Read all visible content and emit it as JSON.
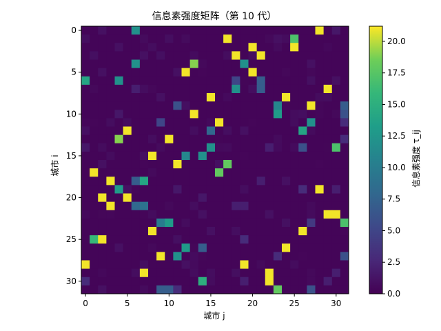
{
  "chart_data": {
    "type": "heatmap",
    "title": "信息素强度矩阵（第 10 代）",
    "xlabel": "城市 j",
    "ylabel": "城市 i",
    "colorbar_label": "信息素强度 τ_ij",
    "colormap": "viridis",
    "vmin": 0.0,
    "vmax": 21.2,
    "x_range": [
      0,
      31
    ],
    "y_range": [
      0,
      31
    ],
    "x_ticks": [
      0,
      5,
      10,
      15,
      20,
      25,
      30
    ],
    "y_ticks": [
      0,
      5,
      10,
      15,
      20,
      25,
      30
    ],
    "colorbar_ticks": [
      "0.0",
      "2.5",
      "5.0",
      "7.5",
      "10.0",
      "12.5",
      "15.0",
      "17.5",
      "20.0"
    ],
    "background_value": 0.3,
    "cells": [
      {
        "i": 0,
        "j": 6,
        "v": 12.0
      },
      {
        "i": 0,
        "j": 28,
        "v": 21.0
      },
      {
        "i": 0,
        "j": 30,
        "v": 1.5
      },
      {
        "i": 1,
        "j": 17,
        "v": 21.0
      },
      {
        "i": 1,
        "j": 25,
        "v": 17.0
      },
      {
        "i": 2,
        "j": 20,
        "v": 21.0
      },
      {
        "i": 2,
        "j": 25,
        "v": 21.0
      },
      {
        "i": 3,
        "j": 18,
        "v": 21.0
      },
      {
        "i": 3,
        "j": 21,
        "v": 21.0
      },
      {
        "i": 4,
        "j": 6,
        "v": 12.0
      },
      {
        "i": 4,
        "j": 13,
        "v": 19.0
      },
      {
        "i": 4,
        "j": 19,
        "v": 12.0
      },
      {
        "i": 5,
        "j": 12,
        "v": 21.0
      },
      {
        "i": 5,
        "j": 20,
        "v": 21.0
      },
      {
        "i": 6,
        "j": 0,
        "v": 14.0
      },
      {
        "i": 6,
        "j": 4,
        "v": 12.0
      },
      {
        "i": 6,
        "j": 18,
        "v": 5.0
      },
      {
        "i": 6,
        "j": 21,
        "v": 7.0
      },
      {
        "i": 7,
        "j": 6,
        "v": 2.0
      },
      {
        "i": 7,
        "j": 18,
        "v": 12.0
      },
      {
        "i": 7,
        "j": 21,
        "v": 7.0
      },
      {
        "i": 7,
        "j": 29,
        "v": 21.0
      },
      {
        "i": 8,
        "j": 15,
        "v": 21.0
      },
      {
        "i": 8,
        "j": 24,
        "v": 21.0
      },
      {
        "i": 9,
        "j": 11,
        "v": 6.0
      },
      {
        "i": 9,
        "j": 23,
        "v": 11.0
      },
      {
        "i": 9,
        "j": 27,
        "v": 21.0
      },
      {
        "i": 9,
        "j": 31,
        "v": 7.0
      },
      {
        "i": 10,
        "j": 13,
        "v": 21.0
      },
      {
        "i": 10,
        "j": 23,
        "v": 13.0
      },
      {
        "i": 10,
        "j": 31,
        "v": 6.0
      },
      {
        "i": 11,
        "j": 9,
        "v": 5.0
      },
      {
        "i": 11,
        "j": 16,
        "v": 21.0
      },
      {
        "i": 11,
        "j": 27,
        "v": 12.0
      },
      {
        "i": 11,
        "j": 31,
        "v": 3.0
      },
      {
        "i": 12,
        "j": 5,
        "v": 21.0
      },
      {
        "i": 12,
        "j": 15,
        "v": 8.0
      },
      {
        "i": 12,
        "j": 26,
        "v": 14.0
      },
      {
        "i": 13,
        "j": 4,
        "v": 19.0
      },
      {
        "i": 13,
        "j": 10,
        "v": 21.0
      },
      {
        "i": 13,
        "j": 31,
        "v": 3.0
      },
      {
        "i": 14,
        "j": 15,
        "v": 12.0
      },
      {
        "i": 14,
        "j": 26,
        "v": 6.0
      },
      {
        "i": 14,
        "j": 30,
        "v": 17.0
      },
      {
        "i": 14,
        "j": 22,
        "v": 2.0
      },
      {
        "i": 15,
        "j": 8,
        "v": 21.0
      },
      {
        "i": 15,
        "j": 12,
        "v": 11.0
      },
      {
        "i": 15,
        "j": 14,
        "v": 12.0
      },
      {
        "i": 16,
        "j": 11,
        "v": 21.0
      },
      {
        "i": 16,
        "j": 17,
        "v": 18.0
      },
      {
        "i": 17,
        "j": 1,
        "v": 21.0
      },
      {
        "i": 17,
        "j": 16,
        "v": 18.0
      },
      {
        "i": 18,
        "j": 3,
        "v": 21.0
      },
      {
        "i": 18,
        "j": 6,
        "v": 7.0
      },
      {
        "i": 18,
        "j": 7,
        "v": 14.0
      },
      {
        "i": 18,
        "j": 21,
        "v": 2.0
      },
      {
        "i": 19,
        "j": 4,
        "v": 13.0
      },
      {
        "i": 19,
        "j": 26,
        "v": 3.0
      },
      {
        "i": 19,
        "j": 28,
        "v": 21.0
      },
      {
        "i": 19,
        "j": 30,
        "v": 2.0
      },
      {
        "i": 20,
        "j": 2,
        "v": 21.0
      },
      {
        "i": 20,
        "j": 5,
        "v": 21.0
      },
      {
        "i": 21,
        "j": 3,
        "v": 21.0
      },
      {
        "i": 21,
        "j": 6,
        "v": 8.0
      },
      {
        "i": 21,
        "j": 7,
        "v": 9.0
      },
      {
        "i": 21,
        "j": 18,
        "v": 2.0
      },
      {
        "i": 21,
        "j": 19,
        "v": 2.0
      },
      {
        "i": 22,
        "j": 29,
        "v": 21.0
      },
      {
        "i": 22,
        "j": 30,
        "v": 21.0
      },
      {
        "i": 23,
        "j": 9,
        "v": 10.0
      },
      {
        "i": 23,
        "j": 10,
        "v": 13.0
      },
      {
        "i": 23,
        "j": 27,
        "v": 4.0
      },
      {
        "i": 23,
        "j": 31,
        "v": 17.0
      },
      {
        "i": 24,
        "j": 8,
        "v": 21.0
      },
      {
        "i": 24,
        "j": 26,
        "v": 21.0
      },
      {
        "i": 25,
        "j": 1,
        "v": 16.0
      },
      {
        "i": 25,
        "j": 2,
        "v": 21.0
      },
      {
        "i": 25,
        "j": 19,
        "v": 3.0
      },
      {
        "i": 26,
        "j": 12,
        "v": 13.0
      },
      {
        "i": 26,
        "j": 14,
        "v": 7.0
      },
      {
        "i": 26,
        "j": 24,
        "v": 21.0
      },
      {
        "i": 27,
        "j": 9,
        "v": 21.0
      },
      {
        "i": 27,
        "j": 11,
        "v": 12.0
      },
      {
        "i": 27,
        "j": 23,
        "v": 3.0
      },
      {
        "i": 27,
        "j": 31,
        "v": 6.0
      },
      {
        "i": 28,
        "j": 0,
        "v": 21.0
      },
      {
        "i": 28,
        "j": 19,
        "v": 21.0
      },
      {
        "i": 29,
        "j": 7,
        "v": 21.0
      },
      {
        "i": 29,
        "j": 22,
        "v": 21.0
      },
      {
        "i": 29,
        "j": 30,
        "v": 2.0
      },
      {
        "i": 30,
        "j": 0,
        "v": 3.0
      },
      {
        "i": 30,
        "j": 14,
        "v": 15.0
      },
      {
        "i": 30,
        "j": 19,
        "v": 2.0
      },
      {
        "i": 30,
        "j": 22,
        "v": 21.0
      },
      {
        "i": 30,
        "j": 29,
        "v": 2.0
      },
      {
        "i": 31,
        "j": 9,
        "v": 7.0
      },
      {
        "i": 31,
        "j": 10,
        "v": 7.0
      },
      {
        "i": 31,
        "j": 11,
        "v": 3.0
      },
      {
        "i": 31,
        "j": 23,
        "v": 18.0
      },
      {
        "i": 31,
        "j": 27,
        "v": 6.0
      },
      {
        "i": 0,
        "j": 2,
        "v": 1.0
      },
      {
        "i": 2,
        "j": 4,
        "v": 1.0
      },
      {
        "i": 3,
        "j": 7,
        "v": 1.0
      },
      {
        "i": 5,
        "j": 2,
        "v": 1.0
      },
      {
        "i": 8,
        "j": 9,
        "v": 1.0
      },
      {
        "i": 12,
        "j": 19,
        "v": 1.0
      },
      {
        "i": 16,
        "j": 2,
        "v": 1.0
      },
      {
        "i": 20,
        "j": 14,
        "v": 1.5
      },
      {
        "i": 22,
        "j": 14,
        "v": 1.0
      },
      {
        "i": 24,
        "j": 15,
        "v": 1.0
      },
      {
        "i": 26,
        "j": 4,
        "v": 1.0
      },
      {
        "i": 28,
        "j": 12,
        "v": 1.0
      },
      {
        "i": 4,
        "j": 27,
        "v": 1.0
      },
      {
        "i": 10,
        "j": 4,
        "v": 1.5
      },
      {
        "i": 18,
        "j": 24,
        "v": 1.0
      },
      {
        "i": 14,
        "j": 0,
        "v": 1.5
      },
      {
        "i": 19,
        "j": 11,
        "v": 1.5
      },
      {
        "i": 22,
        "j": 22,
        "v": 1.0
      },
      {
        "i": 1,
        "j": 23,
        "v": 1.0
      },
      {
        "i": 6,
        "j": 30,
        "v": 1.0
      }
    ]
  }
}
